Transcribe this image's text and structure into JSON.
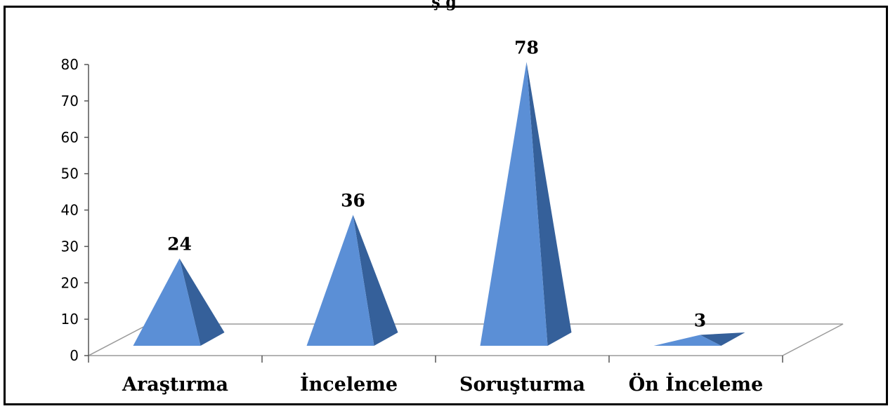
{
  "chart_data": {
    "type": "bar",
    "title_fragment": "ş g",
    "categories": [
      "Araştırma",
      "İnceleme",
      "Soruşturma",
      "Ön İnceleme"
    ],
    "values": [
      24,
      36,
      78,
      3
    ],
    "data_labels": [
      "24",
      "36",
      "78",
      "3"
    ],
    "ylim": [
      0,
      80
    ],
    "y_ticks": [
      0,
      10,
      20,
      30,
      40,
      50,
      60,
      70,
      80
    ],
    "grid": false,
    "legend": "none",
    "bar_shape": "3d-pyramid",
    "colors": {
      "face_light": "#5b8fd6",
      "face_dark": "#35609a",
      "floor_edge": "#9a9a9a"
    }
  }
}
